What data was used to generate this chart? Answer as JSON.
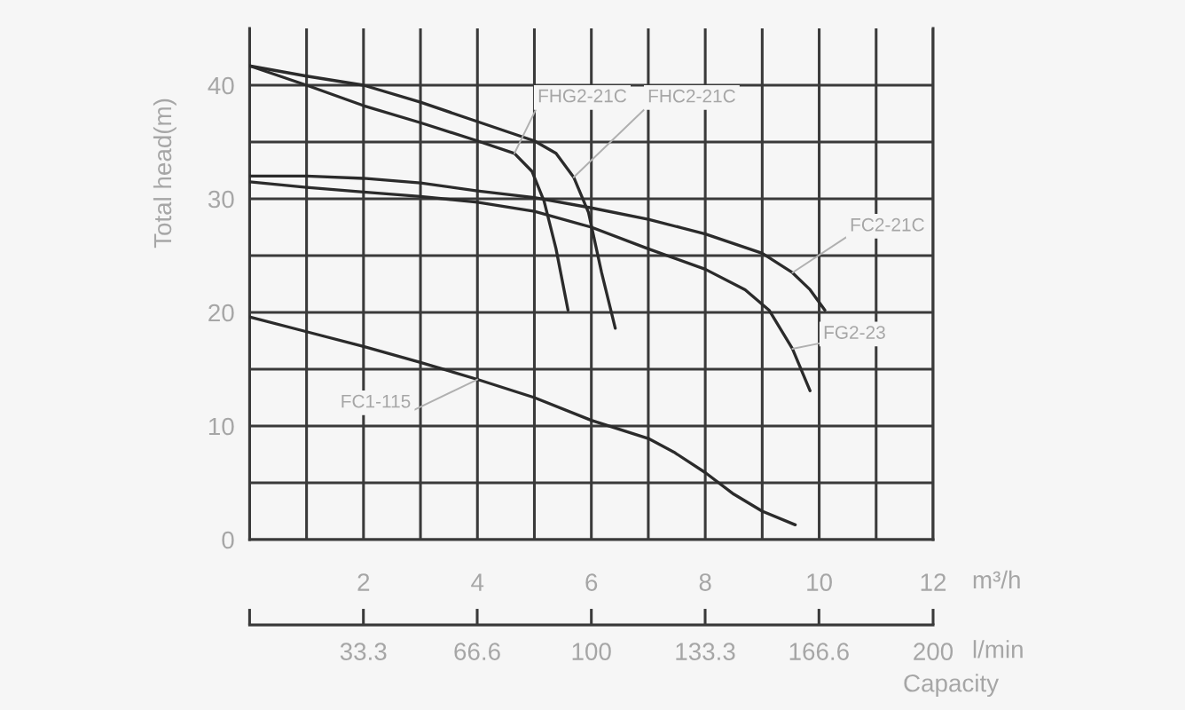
{
  "chart_data": {
    "type": "line",
    "ylabel": "Total head(m)",
    "xlabel": "m³/h",
    "x2label": "l/min",
    "annotations": [
      "Capacity"
    ],
    "xlim": [
      0,
      12
    ],
    "xticks": [
      {
        "value": 0,
        "label": null
      },
      {
        "value": 1,
        "label": null
      },
      2,
      {
        "value": 3,
        "label": null
      },
      4,
      {
        "value": 5,
        "label": null
      },
      6,
      {
        "value": 7,
        "label": null
      },
      8,
      {
        "value": 9,
        "label": null
      },
      10,
      {
        "value": 11,
        "label": null
      },
      12
    ],
    "ylim": [
      0,
      45
    ],
    "yticks": [
      0,
      {
        "value": 5,
        "label": null
      },
      10,
      {
        "value": 15,
        "label": null
      },
      20,
      {
        "value": 25,
        "label": null
      },
      30,
      {
        "value": 35,
        "label": null
      },
      40
    ],
    "x2lim": [
      0,
      200
    ],
    "x2ticks": [
      {
        "value": 0,
        "label": null
      },
      33.3,
      66.6,
      100,
      133.3,
      166.6,
      200
    ],
    "grid": true,
    "marker": "none",
    "line_style": "solid",
    "series": [
      {
        "name": "FHG2-21C",
        "color": "#2b2b2b",
        "x": [
          0,
          1,
          2,
          3,
          4,
          4.65,
          4.96,
          5.17,
          5.38,
          5.59
        ],
        "values": [
          41.7,
          40.0,
          38.2,
          36.7,
          35.1,
          34.0,
          32.4,
          29.8,
          25.6,
          20.2
        ]
      },
      {
        "name": "FHC2-21C",
        "color": "#2b2b2b",
        "x": [
          0,
          1,
          2,
          3,
          4,
          5,
          5.38,
          5.69,
          5.95,
          6.18,
          6.42
        ],
        "values": [
          41.7,
          40.8,
          40.0,
          38.5,
          36.8,
          35.1,
          34.0,
          31.9,
          28.8,
          23.5,
          18.6
        ]
      },
      {
        "name": "FC2-21C",
        "color": "#2b2b2b",
        "x": [
          0,
          1,
          2,
          3,
          4,
          5,
          6,
          7,
          8,
          9,
          9.53,
          9.84,
          10.1
        ],
        "values": [
          32.0,
          32.0,
          31.8,
          31.4,
          30.7,
          30.1,
          29.2,
          28.2,
          26.9,
          25.2,
          23.5,
          22.0,
          20.2
        ]
      },
      {
        "name": "FG2-23",
        "color": "#2b2b2b",
        "x": [
          0,
          1,
          2,
          3,
          4,
          5,
          6,
          7,
          8,
          8.7,
          9.12,
          9.53,
          9.84
        ],
        "values": [
          31.5,
          31.0,
          30.6,
          30.2,
          29.7,
          28.9,
          27.5,
          25.6,
          23.8,
          22.0,
          20.2,
          16.8,
          13.1
        ]
      },
      {
        "name": "FC1-115",
        "color": "#2b2b2b",
        "x": [
          0,
          1,
          2,
          3,
          4,
          5,
          6,
          7,
          7.45,
          8,
          8.5,
          9,
          9.58
        ],
        "values": [
          19.6,
          18.3,
          17.0,
          15.6,
          14.1,
          12.5,
          10.5,
          8.9,
          7.7,
          5.9,
          4.0,
          2.5,
          1.3
        ]
      }
    ]
  }
}
